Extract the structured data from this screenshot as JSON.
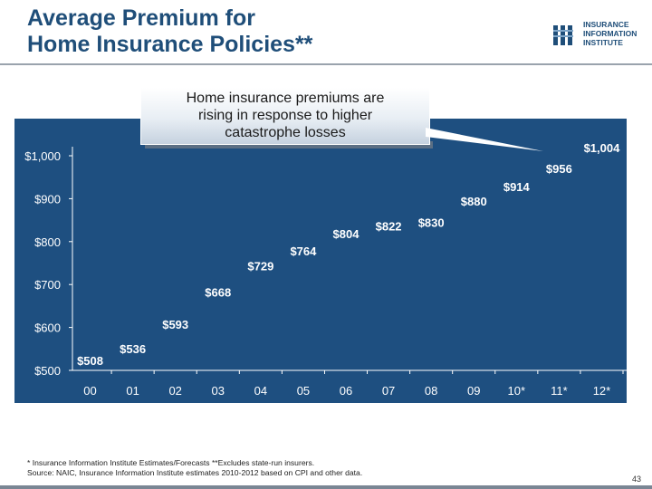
{
  "slide": {
    "title_line1": "Average Premium for",
    "title_line2": "Home Insurance Policies**",
    "logo_lines": [
      "INSURANCE",
      "INFORMATION",
      "INSTITUTE"
    ],
    "callout_lines": [
      "Home insurance premiums are",
      "rising in response to higher",
      "catastrophe losses"
    ],
    "footnote_line1": "* Insurance Information Institute Estimates/Forecasts  **Excludes state-run insurers.",
    "footnote_line2": "Source: NAIC, Insurance Information Institute estimates 2010-2012 based on CPI and other data.",
    "page_number": "43"
  },
  "colors": {
    "title": "#1f4e79",
    "panel": "#1e4f80",
    "text": "#ffffff"
  },
  "chart_data": {
    "type": "bar",
    "categories": [
      "00",
      "01",
      "02",
      "03",
      "04",
      "05",
      "06",
      "07",
      "08",
      "09",
      "10*",
      "11*",
      "12*"
    ],
    "values": [
      508,
      536,
      593,
      668,
      729,
      764,
      804,
      822,
      830,
      880,
      914,
      956,
      1004
    ],
    "data_labels": [
      "$508",
      "$536",
      "$593",
      "$668",
      "$729",
      "$764",
      "$804",
      "$822",
      "$830",
      "$880",
      "$914",
      "$956",
      "$1,004"
    ],
    "y_ticks": [
      500,
      600,
      700,
      800,
      900,
      1000
    ],
    "y_tick_labels": [
      "$500",
      "$600",
      "$700",
      "$800",
      "$900",
      "$1,000"
    ],
    "ylim": [
      500,
      1000
    ],
    "title": "",
    "xlabel": "",
    "ylabel": ""
  }
}
